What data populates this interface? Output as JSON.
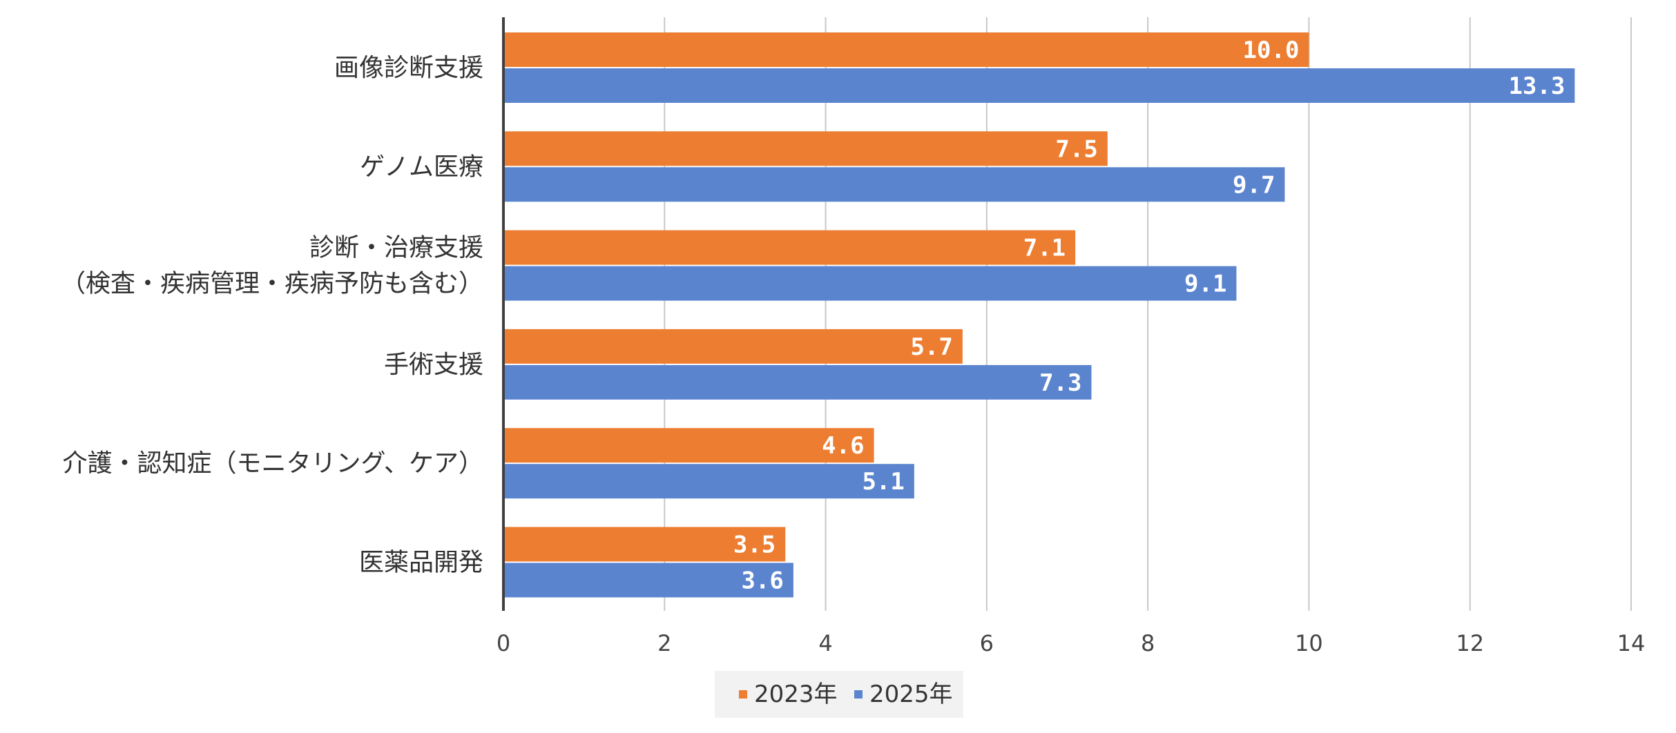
{
  "chart_data": {
    "type": "bar",
    "orientation": "horizontal",
    "categories": [
      [
        "画像診断支援"
      ],
      [
        "ゲノム医療"
      ],
      [
        "診断・治療支援",
        "（検査・疾病管理・疾病予防も含む）"
      ],
      [
        "手術支援"
      ],
      [
        "介護・認知症（モニタリング、ケア）"
      ],
      [
        "医薬品開発"
      ]
    ],
    "series": [
      {
        "name": "2023年",
        "color": "#ED7D31",
        "values": [
          10.0,
          7.5,
          7.1,
          5.7,
          4.6,
          3.5
        ],
        "labels": [
          "10.0",
          "7.5",
          "7.1",
          "5.7",
          "4.6",
          "3.5"
        ]
      },
      {
        "name": "2025年",
        "color": "#5B84CF",
        "values": [
          13.3,
          9.7,
          9.1,
          7.3,
          5.1,
          3.6
        ],
        "labels": [
          "13.3",
          "9.7",
          "9.1",
          "7.3",
          "5.1",
          "3.6"
        ]
      }
    ],
    "xlim": [
      0,
      14
    ],
    "xticks": [
      "0",
      "2",
      "4",
      "6",
      "8",
      "10",
      "12",
      "14"
    ],
    "xtick_values": [
      0,
      2,
      4,
      6,
      8,
      10,
      12,
      14
    ],
    "grid": true,
    "legend_position": "bottom-center"
  }
}
